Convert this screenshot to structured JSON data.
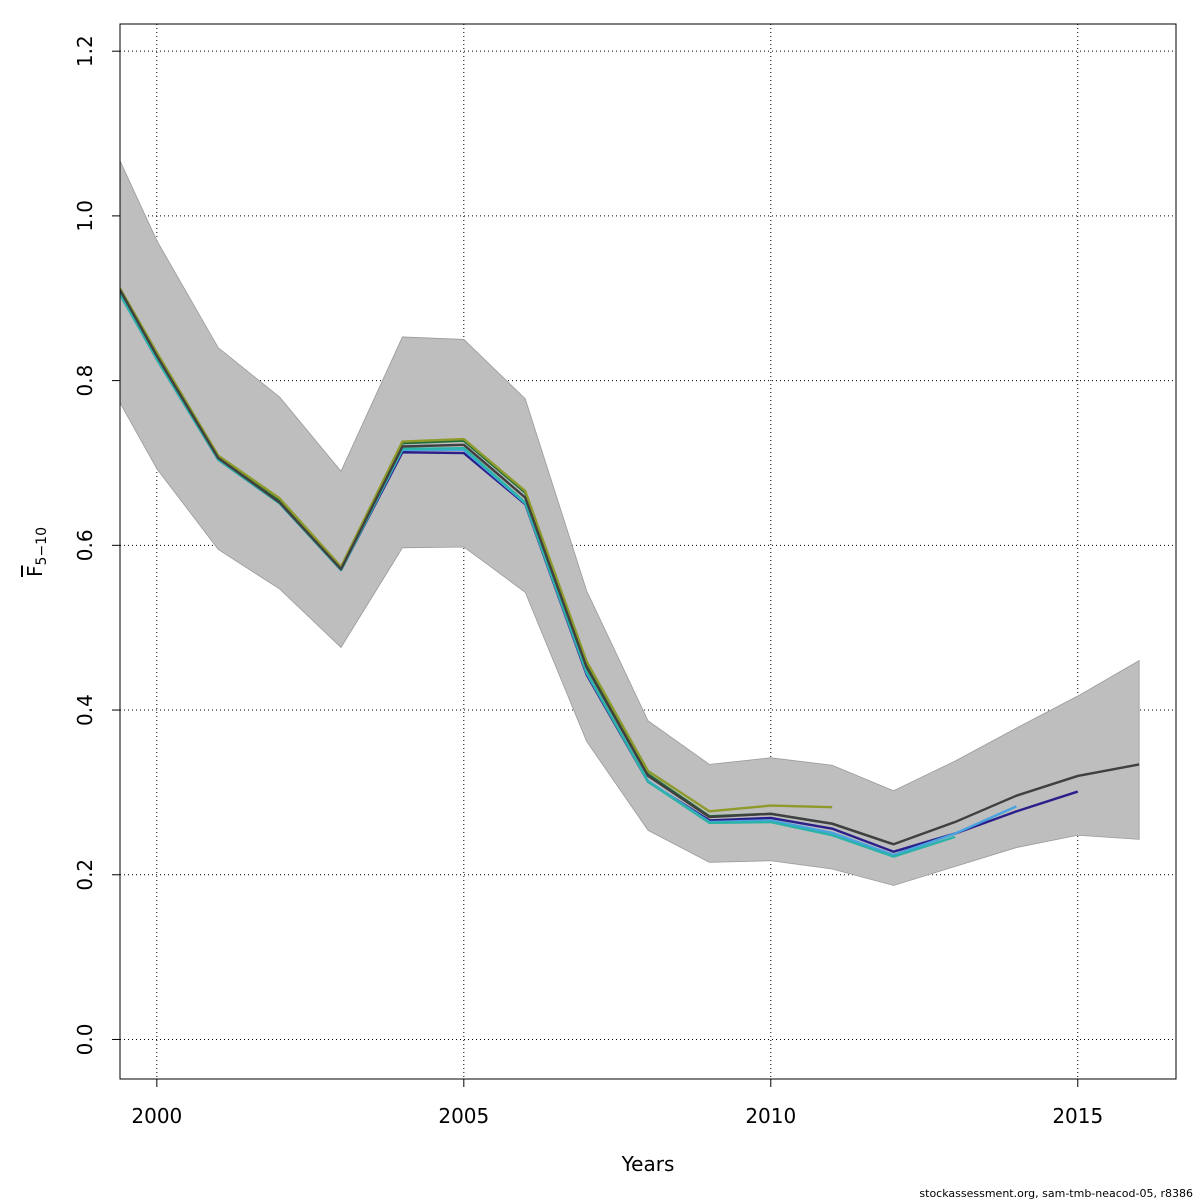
{
  "chart_data": {
    "type": "line",
    "xlabel": "Years",
    "ylabel_main": "F",
    "ylabel_sub": "5−10",
    "xlim": [
      1999.4,
      2016.6
    ],
    "ylim": [
      -0.048,
      1.233
    ],
    "xticks": [
      2000,
      2005,
      2010,
      2015
    ],
    "yticks": [
      0.0,
      0.2,
      0.4,
      0.6,
      0.8,
      1.0,
      1.2
    ],
    "ytick_labels": [
      "0.0",
      "0.2",
      "0.4",
      "0.6",
      "0.8",
      "1.0",
      "1.2"
    ],
    "grid": true,
    "band_color": "#bebebe",
    "confidence_band": {
      "x": [
        1999.4,
        2000,
        2001,
        2002,
        2003,
        2004,
        2005,
        2006,
        2007,
        2008,
        2009,
        2010,
        2011,
        2012,
        2013,
        2014,
        2015,
        2016
      ],
      "upper": [
        1.067,
        0.97,
        0.84,
        0.78,
        0.69,
        0.853,
        0.85,
        0.778,
        0.545,
        0.387,
        0.334,
        0.342,
        0.333,
        0.302,
        0.338,
        0.378,
        0.417,
        0.46
      ],
      "lower": [
        0.773,
        0.693,
        0.595,
        0.547,
        0.476,
        0.597,
        0.598,
        0.543,
        0.362,
        0.254,
        0.215,
        0.217,
        0.207,
        0.187,
        0.21,
        0.233,
        0.248,
        0.243
      ]
    },
    "series": [
      {
        "color": "#404040",
        "x": [
          1999.4,
          2000,
          2001,
          2002,
          2003,
          2004,
          2005,
          2006,
          2007,
          2008,
          2009,
          2010,
          2011,
          2012,
          2013,
          2014,
          2015,
          2016
        ],
        "values": [
          0.91,
          0.83,
          0.706,
          0.652,
          0.571,
          0.72,
          0.722,
          0.658,
          0.452,
          0.32,
          0.27,
          0.274,
          0.262,
          0.237,
          0.264,
          0.296,
          0.32,
          0.334
        ]
      },
      {
        "color": "#2a1f8a",
        "x": [
          1999.4,
          2000,
          2001,
          2002,
          2003,
          2004,
          2005,
          2006,
          2007,
          2008,
          2009,
          2010,
          2011,
          2012,
          2013,
          2014,
          2015
        ],
        "values": [
          0.905,
          0.826,
          0.704,
          0.651,
          0.57,
          0.713,
          0.712,
          0.65,
          0.443,
          0.313,
          0.266,
          0.269,
          0.256,
          0.228,
          0.25,
          0.277,
          0.301
        ]
      },
      {
        "color": "#4aa3df",
        "x": [
          1999.4,
          2000,
          2001,
          2002,
          2003,
          2004,
          2005,
          2006,
          2007,
          2008,
          2009,
          2010,
          2011,
          2012,
          2013,
          2014
        ],
        "values": [
          0.905,
          0.826,
          0.704,
          0.651,
          0.57,
          0.716,
          0.716,
          0.651,
          0.445,
          0.314,
          0.264,
          0.266,
          0.251,
          0.224,
          0.25,
          0.283
        ]
      },
      {
        "color": "#2ab3a8",
        "x": [
          1999.4,
          2000,
          2001,
          2002,
          2003,
          2004,
          2005,
          2006,
          2007,
          2008,
          2009,
          2010,
          2011,
          2012,
          2013
        ],
        "values": [
          0.905,
          0.826,
          0.704,
          0.651,
          0.57,
          0.717,
          0.718,
          0.652,
          0.446,
          0.313,
          0.263,
          0.264,
          0.248,
          0.222,
          0.246
        ]
      },
      {
        "color": "#1e6b3c",
        "x": [
          1999.4,
          2000,
          2001,
          2002,
          2003,
          2004,
          2005,
          2006,
          2007,
          2008,
          2009,
          2010,
          2011,
          2012
        ],
        "values": [
          0.91,
          0.832,
          0.707,
          0.655,
          0.572,
          0.724,
          0.727,
          0.664,
          0.455,
          0.322,
          0.271,
          0.274,
          0.262,
          0.237
        ]
      },
      {
        "color": "#8e9a2a",
        "x": [
          1999.4,
          2000,
          2001,
          2002,
          2003,
          2004,
          2005,
          2006,
          2007,
          2008,
          2009,
          2010,
          2011
        ],
        "values": [
          0.912,
          0.834,
          0.709,
          0.657,
          0.574,
          0.726,
          0.729,
          0.666,
          0.459,
          0.326,
          0.277,
          0.284,
          0.282
        ]
      }
    ]
  },
  "footer": {
    "source_note": "stockassessment.org, sam-tmb-neacod-05, r8386"
  }
}
